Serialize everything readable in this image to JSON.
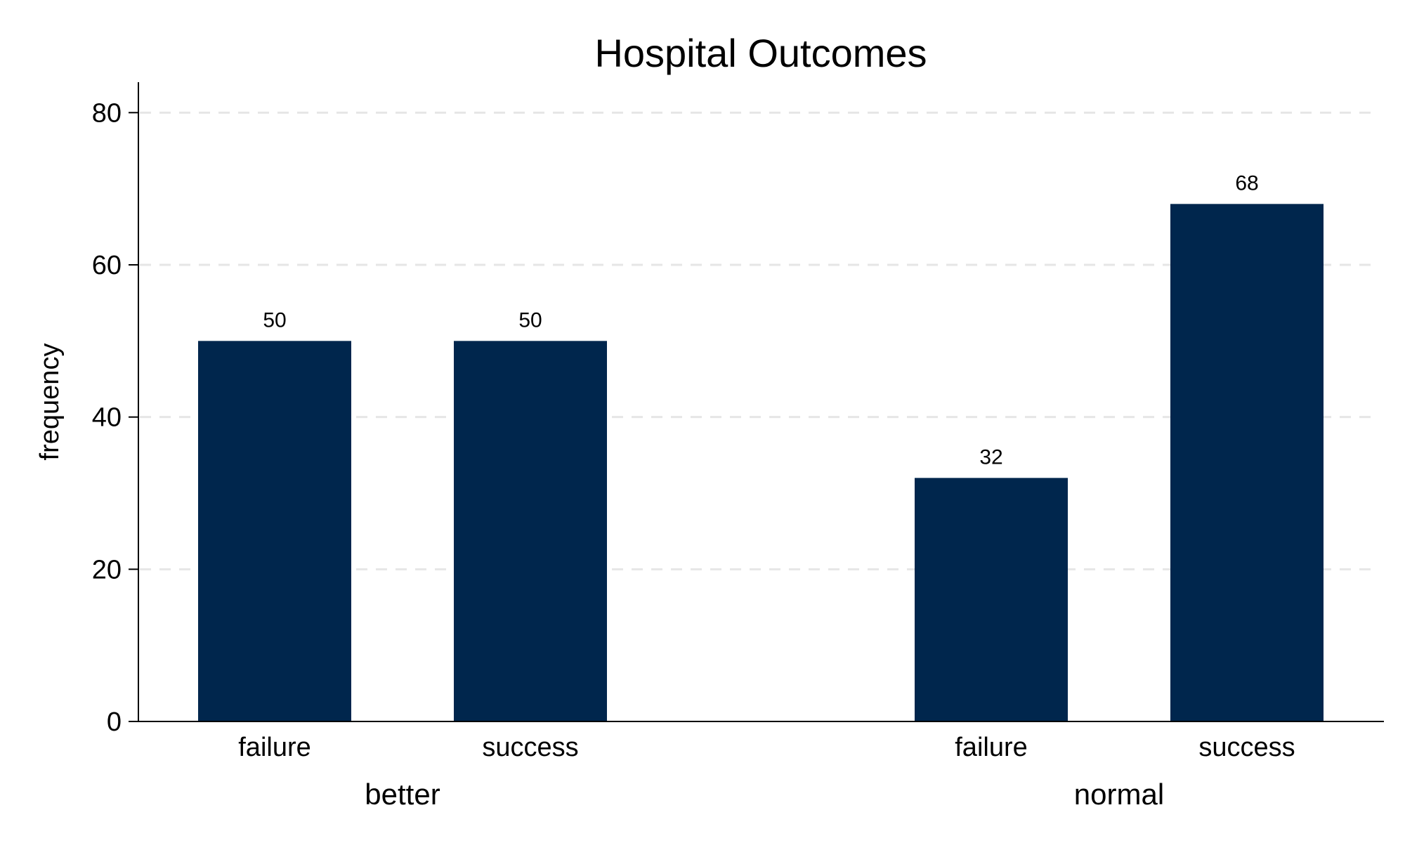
{
  "chart_data": {
    "type": "bar",
    "title": "Hospital Outcomes",
    "ylabel": "frequency",
    "xlabel": "",
    "ylim": [
      0,
      84
    ],
    "yticks": [
      0,
      20,
      40,
      60,
      80
    ],
    "grid": true,
    "bar_color": "#00264d",
    "groups": [
      {
        "name": "better",
        "bars": [
          {
            "category": "failure",
            "value": 50
          },
          {
            "category": "success",
            "value": 50
          }
        ]
      },
      {
        "name": "normal",
        "bars": [
          {
            "category": "failure",
            "value": 32
          },
          {
            "category": "success",
            "value": 68
          }
        ]
      }
    ]
  }
}
